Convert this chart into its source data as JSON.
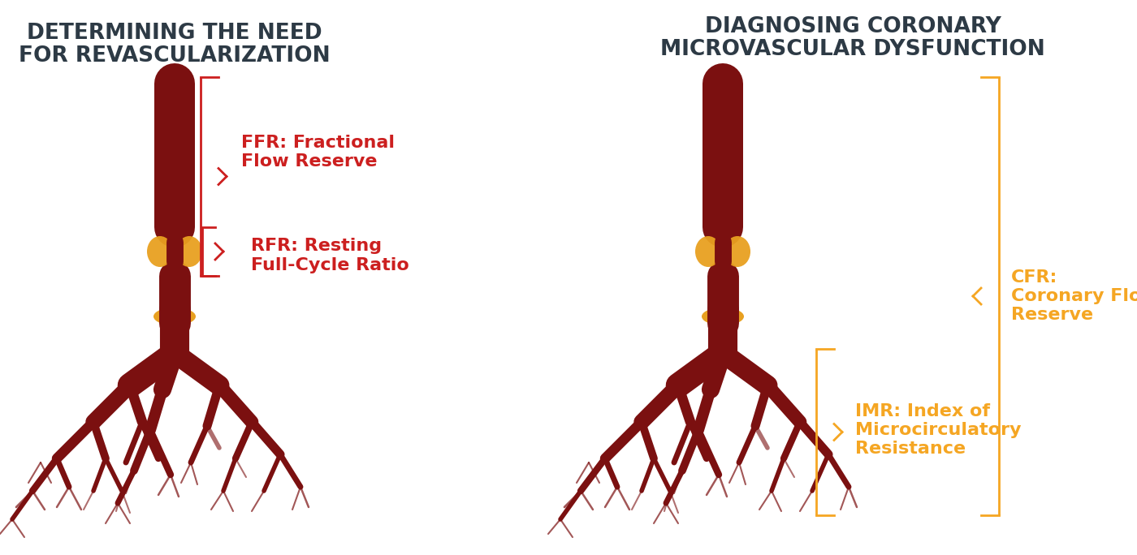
{
  "title_left_line1": "DETERMINING THE NEED",
  "title_left_line2": "FOR REVASCULARIZATION",
  "title_right_line1": "DIAGNOSING CORONARY",
  "title_right_line2": "MICROVASCULAR DYSFUNCTION",
  "title_color": "#2d3a45",
  "title_fontsize": 19,
  "bg_color": "#ffffff",
  "red_color": "#cc1f1f",
  "orange_color": "#f5a623",
  "label_fontsize": 16,
  "ffr_label": "FFR: Fractional\nFlow Reserve",
  "rfr_label": "RFR: Resting\nFull-Cycle Ratio",
  "cfr_label": "CFR:\nCoronary Flow\nReserve",
  "imr_label": "IMR: Index of\nMicrocirculatory\nResistance",
  "vessel_dark": "#7b1010",
  "vessel_body": "#8b1515",
  "plaque_color": "#d4820a",
  "plaque_light": "#e8a020"
}
